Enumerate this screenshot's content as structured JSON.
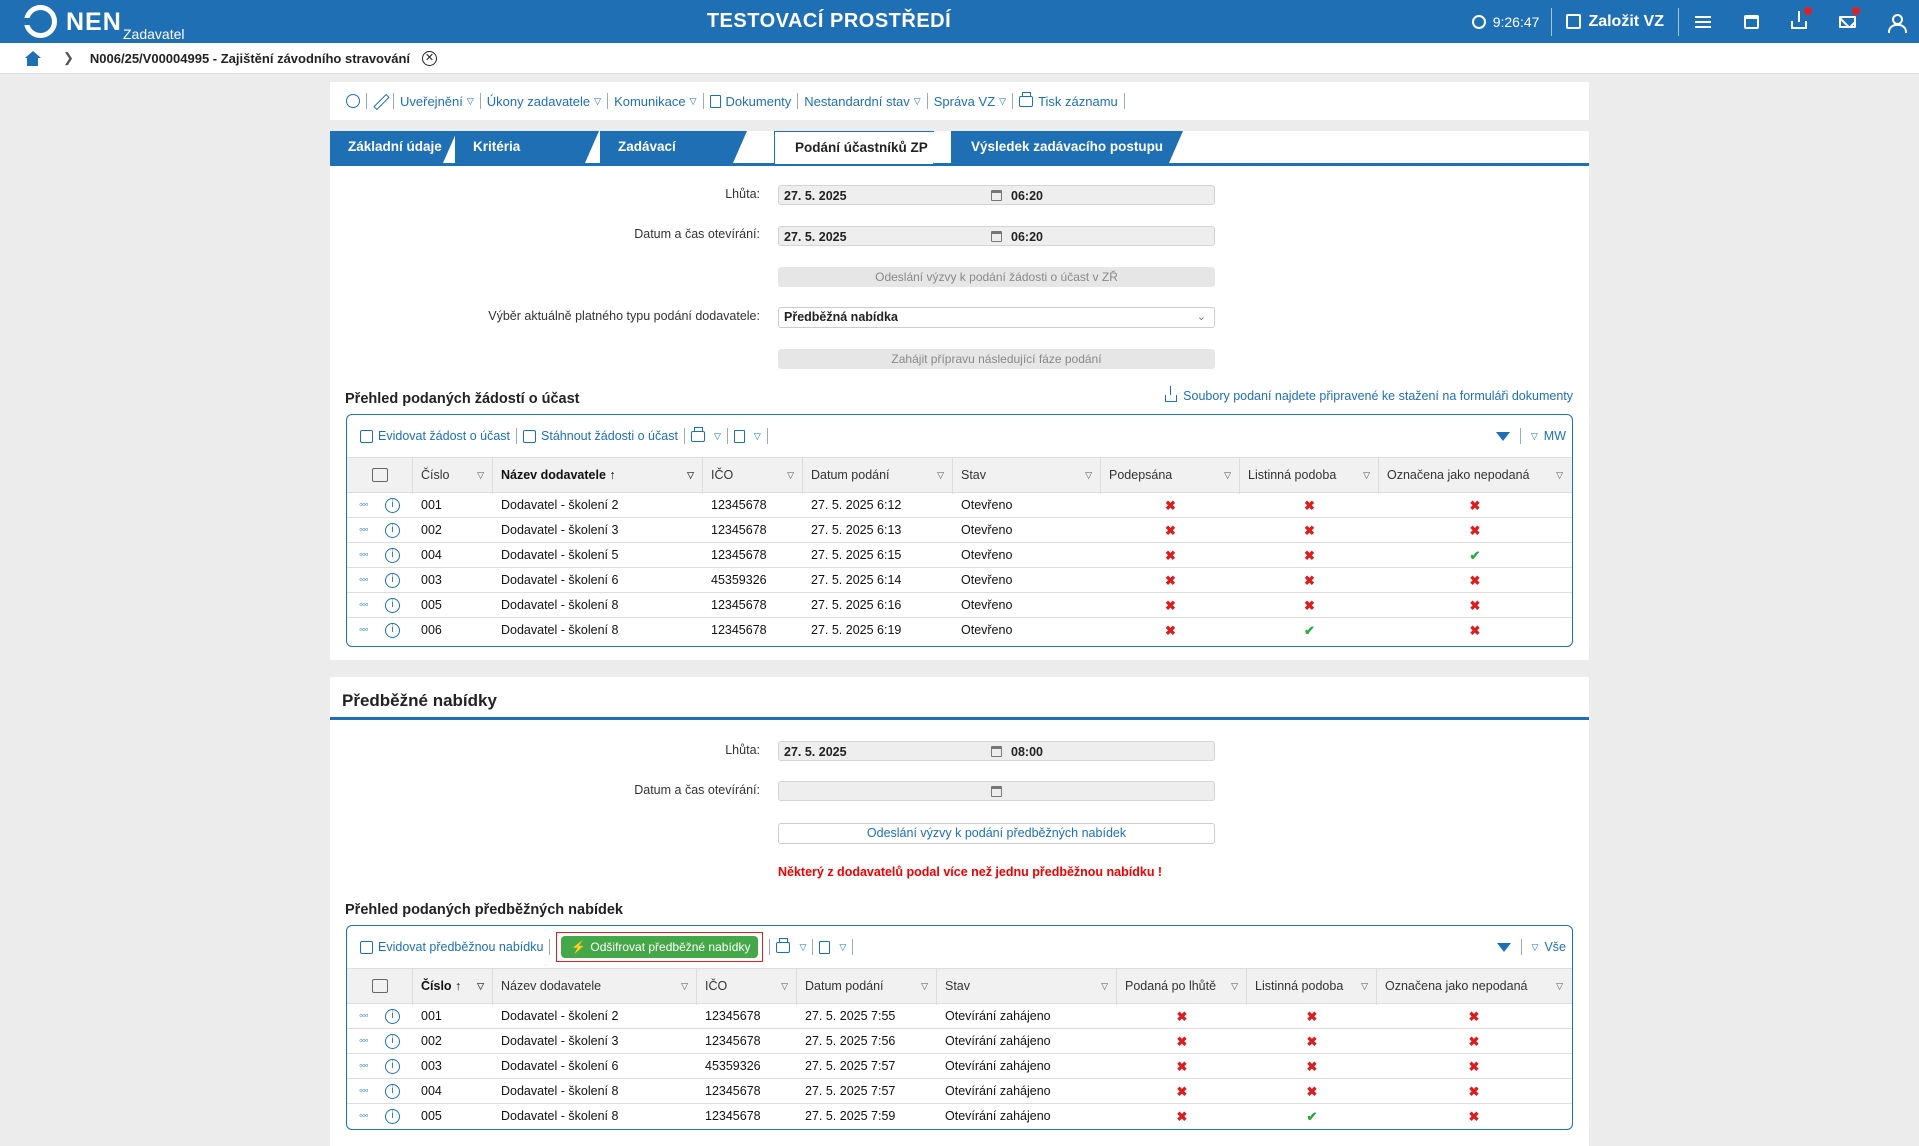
{
  "topbar": {
    "logo": "NEN",
    "logo_sub": "Zadavatel",
    "env_title": "TESTOVACÍ PROSTŘEDÍ",
    "time": "9:26:47",
    "create_label": "Založit VZ"
  },
  "breadcrumb": {
    "item": "N006/25/V00004995 - Zajištění závodního stravování"
  },
  "toolbar": {
    "items": [
      "Uveřejnění",
      "Úkony zadavatele",
      "Komunikace",
      "Dokumenty",
      "Nestandardní stav",
      "Správa VZ",
      "Tisk záznamu"
    ]
  },
  "tabs": [
    "Základní údaje",
    "Kritéria hodnocení",
    "Zadávací podmínky",
    "Podání účastníků ZP",
    "Výsledek zadávacího postupu"
  ],
  "section1": {
    "lhuta_label": "Lhůta:",
    "lhuta_date": "27. 5. 2025",
    "lhuta_time": "06:20",
    "otevirani_label": "Datum a čas otevírání:",
    "otevirani_date": "27. 5. 2025",
    "otevirani_time": "06:20",
    "send_button": "Odeslání výzvy k podání žádosti o účast v ZŘ",
    "type_label": "Výběr aktuálně platného typu podání dodavatele:",
    "type_value": "Předběžná nabídka",
    "next_phase_button": "Zahájit přípravu následující fáze podání",
    "overview_title": "Přehled podaných žádostí o účast",
    "files_link": "Soubory podaní najdete připravené ke stažení na formuláři dokumenty",
    "grid_tool_1": "Evidovat žádost o účast",
    "grid_tool_2": "Stáhnout žádosti o účast",
    "grid_view": "MW",
    "columns": [
      "Číslo",
      "Název dodavatele",
      "IČO",
      "Datum podání",
      "Stav",
      "Podepsána",
      "Listinná podoba",
      "Označena jako nepodaná"
    ],
    "rows": [
      {
        "cislo": "001",
        "nazev": "Dodavatel - školení 2",
        "ico": "12345678",
        "datum": "27. 5. 2025 6:12",
        "stav": "Otevřeno",
        "podepsana": false,
        "listinna": false,
        "nepodana": false
      },
      {
        "cislo": "002",
        "nazev": "Dodavatel - školení 3",
        "ico": "12345678",
        "datum": "27. 5. 2025 6:13",
        "stav": "Otevřeno",
        "podepsana": false,
        "listinna": false,
        "nepodana": false
      },
      {
        "cislo": "004",
        "nazev": "Dodavatel - školení 5",
        "ico": "12345678",
        "datum": "27. 5. 2025 6:15",
        "stav": "Otevřeno",
        "podepsana": false,
        "listinna": false,
        "nepodana": true
      },
      {
        "cislo": "003",
        "nazev": "Dodavatel - školení 6",
        "ico": "45359326",
        "datum": "27. 5. 2025 6:14",
        "stav": "Otevřeno",
        "podepsana": false,
        "listinna": false,
        "nepodana": false
      },
      {
        "cislo": "005",
        "nazev": "Dodavatel - školení 8",
        "ico": "12345678",
        "datum": "27. 5. 2025 6:16",
        "stav": "Otevřeno",
        "podepsana": false,
        "listinna": false,
        "nepodana": false
      },
      {
        "cislo": "006",
        "nazev": "Dodavatel - školení 8",
        "ico": "12345678",
        "datum": "27. 5. 2025 6:19",
        "stav": "Otevřeno",
        "podepsana": false,
        "listinna": true,
        "nepodana": false
      }
    ]
  },
  "section2": {
    "heading": "Předběžné nabídky",
    "lhuta_label": "Lhůta:",
    "lhuta_date": "27. 5. 2025",
    "lhuta_time": "08:00",
    "otevirani_label": "Datum a čas otevírání:",
    "send_button": "Odeslání výzvy k podání předběžných nabídek",
    "warning": "Některý z dodavatelů podal více než jednu předběžnou nabídku !",
    "overview_title": "Přehled podaných předběžných nabídek",
    "grid_tool_1": "Evidovat předběžnou nabídku",
    "decrypt_button": "Odšifrovat předběžné nabídky",
    "grid_view": "Vše",
    "columns": [
      "Číslo",
      "Název dodavatele",
      "IČO",
      "Datum podání",
      "Stav",
      "Podaná po lhůtě",
      "Listinná podoba",
      "Označena jako nepodaná"
    ],
    "rows": [
      {
        "cislo": "001",
        "nazev": "Dodavatel - školení 2",
        "ico": "12345678",
        "datum": "27. 5. 2025 7:55",
        "stav": "Otevírání zahájeno",
        "po_lhute": false,
        "listinna": false,
        "nepodana": false
      },
      {
        "cislo": "002",
        "nazev": "Dodavatel - školení 3",
        "ico": "12345678",
        "datum": "27. 5. 2025 7:56",
        "stav": "Otevírání zahájeno",
        "po_lhute": false,
        "listinna": false,
        "nepodana": false
      },
      {
        "cislo": "003",
        "nazev": "Dodavatel - školení 6",
        "ico": "45359326",
        "datum": "27. 5. 2025 7:57",
        "stav": "Otevírání zahájeno",
        "po_lhute": false,
        "listinna": false,
        "nepodana": false
      },
      {
        "cislo": "004",
        "nazev": "Dodavatel - školení 8",
        "ico": "12345678",
        "datum": "27. 5. 2025 7:57",
        "stav": "Otevírání zahájeno",
        "po_lhute": false,
        "listinna": false,
        "nepodana": false
      },
      {
        "cislo": "005",
        "nazev": "Dodavatel - školení 8",
        "ico": "12345678",
        "datum": "27. 5. 2025 7:59",
        "stav": "Otevírání zahájeno",
        "po_lhute": false,
        "listinna": true,
        "nepodana": false
      }
    ]
  }
}
